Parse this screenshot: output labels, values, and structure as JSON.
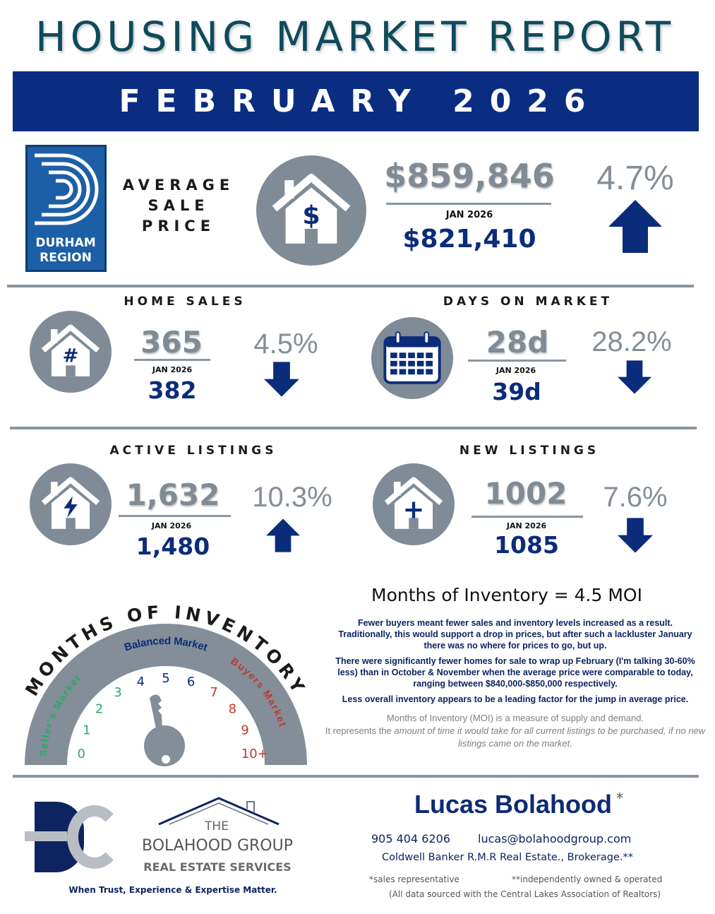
{
  "title": "HOUSING MARKET REPORT",
  "banner": "FEBRUARY 2026",
  "region_logo": {
    "line1": "DURHAM",
    "line2": "REGION"
  },
  "colors": {
    "navy": "#0b2c7a",
    "gray": "#7d8893",
    "title": "#0e4a5c",
    "seller": "#2aa96a",
    "balanced": "#0b2c7a",
    "buyer": "#c0392b"
  },
  "average_sale_price": {
    "label_lines": [
      "AVERAGE",
      "SALE",
      "PRICE"
    ],
    "icon": "house-dollar-icon",
    "icon_glyph": "$",
    "value": "$859,846",
    "prev_label": "JAN 2026",
    "prev_value": "$821,410",
    "change": "4.7%",
    "direction": "up"
  },
  "home_sales": {
    "label": "HOME SALES",
    "icon": "house-hash-icon",
    "icon_glyph": "#",
    "value": "365",
    "prev_label": "JAN 2026",
    "prev_value": "382",
    "change": "4.5%",
    "direction": "down"
  },
  "days_on_market": {
    "label": "DAYS ON MARKET",
    "icon": "calendar-icon",
    "value": "28d",
    "prev_label": "JAN 2026",
    "prev_value": "39d",
    "change": "28.2%",
    "direction": "down"
  },
  "active_listings": {
    "label": "ACTIVE LISTINGS",
    "icon": "house-lightning-icon",
    "value": "1,632",
    "prev_label": "JAN 2026",
    "prev_value": "1,480",
    "change": "10.3%",
    "direction": "up"
  },
  "new_listings": {
    "label": "NEW LISTINGS",
    "icon": "house-plus-icon",
    "icon_glyph": "+",
    "value": "1002",
    "prev_label": "JAN 2026",
    "prev_value": "1085",
    "change": "7.6%",
    "direction": "down"
  },
  "gauge": {
    "title": "MONTHS OF INVENTORY",
    "sellers": "Seller's Market",
    "balanced": "Balanced Market",
    "buyers": "Buyers Market",
    "ticks": [
      "0",
      "1",
      "2",
      "3",
      "4",
      "5",
      "6",
      "7",
      "8",
      "9",
      "10+"
    ],
    "value": 4.5
  },
  "moi": {
    "heading": "Months of Inventory = 4.5 MOI",
    "p1": "Fewer buyers meant fewer sales and inventory levels increased as a result. Traditionally, this would support a drop in prices, but after such a lackluster January there was no where for prices to go, but up.",
    "p2": "There were significantly fewer homes for sale to wrap up February (I'm talking 30-60% less) than in October & November when the average price were comparable to today, ranging between $840,000-$850,000 respectively.",
    "p3": "Less overall inventory appears to be a leading factor for the jump in average price.",
    "def1": "Months of Inventory (MOI) is a measure of supply and demand.",
    "def2a": "It represents the ",
    "def2b": "amount of time it would take for all current listings to be purchased, if no new listings came on the market."
  },
  "footer": {
    "bg_logo": "BG",
    "group_the": "THE",
    "group_name": "BOLAHOOD GROUP",
    "group_sub": "REAL ESTATE SERVICES",
    "tagline": "When Trust, Experience & Expertise Matter.",
    "agent": "Lucas Bolahood",
    "agent_mark": "*",
    "phone": "905 404 6206",
    "email": "lucas@bolahoodgroup.com",
    "brokerage": "Coldwell Banker R.M.R Real Estate., Brokerage.**",
    "note1": "*sales representative",
    "note2": "**independently owned & operated",
    "source": "(All data sourced with the Central Lakes Association of Realtors)"
  }
}
